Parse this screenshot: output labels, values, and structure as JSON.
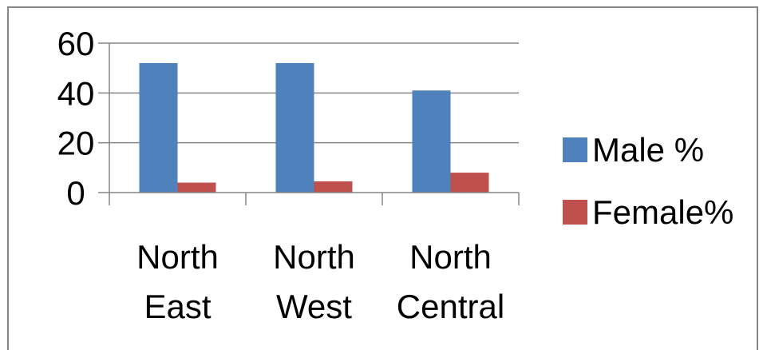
{
  "chart_data": {
    "type": "bar",
    "categories": [
      [
        "North",
        "East"
      ],
      [
        "North",
        "West"
      ],
      [
        "North",
        "Central"
      ]
    ],
    "series": [
      {
        "name": "Male %",
        "color": "#4F81BD",
        "values": [
          52,
          52,
          41
        ]
      },
      {
        "name": "Female%",
        "color": "#C0504D",
        "values": [
          4,
          4.5,
          8
        ]
      }
    ],
    "y_ticks": [
      "0",
      "20",
      "40",
      "60"
    ],
    "ylim": [
      0,
      60
    ],
    "grid": true,
    "legend_position": "right"
  }
}
